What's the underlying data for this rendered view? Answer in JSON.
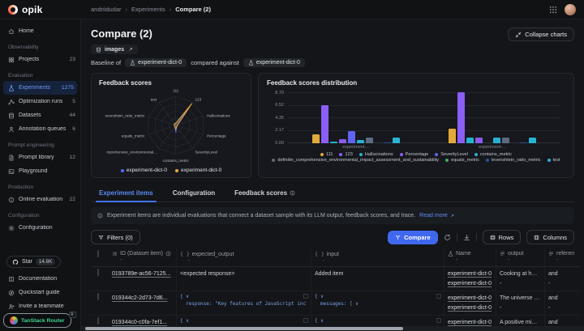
{
  "topbar": {
    "logo_text": "opik",
    "breadcrumb": [
      "andriidudar",
      "Experiments",
      "Compare (2)"
    ],
    "breadcrumb_separator": "›"
  },
  "sidebar": {
    "groups": [
      {
        "label": null,
        "items": [
          {
            "label": "Home",
            "icon": "home"
          }
        ]
      },
      {
        "label": "Observability",
        "items": [
          {
            "label": "Projects",
            "icon": "grid",
            "count": "23"
          }
        ]
      },
      {
        "label": "Evaluation",
        "items": [
          {
            "label": "Experiments",
            "icon": "flask",
            "count": "1275",
            "active": true
          },
          {
            "label": "Optimization runs",
            "icon": "optimization",
            "count": "5"
          },
          {
            "label": "Datasets",
            "icon": "database",
            "count": "44"
          },
          {
            "label": "Annotation queues",
            "icon": "annotation",
            "count": "6"
          }
        ]
      },
      {
        "label": "Prompt engineering",
        "items": [
          {
            "label": "Prompt library",
            "icon": "document",
            "count": "12"
          },
          {
            "label": "Playground",
            "icon": "playground"
          }
        ]
      },
      {
        "label": "Production",
        "items": [
          {
            "label": "Online evaluation",
            "icon": "online",
            "count": "22"
          }
        ]
      },
      {
        "label": "Configuration",
        "items": [
          {
            "label": "Configuration",
            "icon": "gear"
          }
        ]
      }
    ],
    "footer": {
      "star_label": "Star",
      "star_count": "14.8K",
      "items": [
        {
          "label": "Documentation",
          "icon": "book"
        },
        {
          "label": "Quickstart guide",
          "icon": "compass"
        },
        {
          "label": "Invite a teammate",
          "icon": "user-plus"
        }
      ]
    }
  },
  "devtools": {
    "label": "TanStack Router",
    "shortcut": "k"
  },
  "header": {
    "title": "Compare (2)",
    "dataset_badge": "images",
    "baseline_prefix": "Baseline of",
    "baseline_experiment": "experiment-dict-0",
    "compared_label": "compared against",
    "compared_experiment": "experiment-dict-0",
    "collapse_button": "Collapse charts"
  },
  "chart_data": [
    {
      "type": "radar",
      "title": "Feedback scores",
      "axes": [
        "111",
        "123",
        "Hallucinations",
        "Percentage",
        "SeverityLevel",
        "contains_metric",
        "mprehensive_environmental...",
        "equals_metric",
        "evenshtein_ratio_metric",
        "test"
      ],
      "rings": 4,
      "max": 1,
      "series": [
        {
          "name": "experiment-dict-0",
          "color": "#4e6ef2",
          "values": [
            0.07,
            0.78,
            0.06,
            0.05,
            0.05,
            0.24,
            0.05,
            0.05,
            0.06,
            0.07
          ]
        },
        {
          "name": "experiment-dict-0",
          "color": "#e8a93c",
          "values": [
            0.08,
            0.95,
            0.07,
            0.05,
            0.05,
            0.13,
            0.05,
            0.05,
            0.06,
            0.08
          ]
        }
      ],
      "legend_position": "bottom"
    },
    {
      "type": "bar",
      "title": "Feedback scores distribution",
      "categories": [
        "experiment-...",
        "experiment-..."
      ],
      "ylim": [
        0,
        8.7
      ],
      "yticks": [
        "8.70",
        "6.52",
        "4.35",
        "2.17",
        "0.00"
      ],
      "grid": true,
      "legend_position": "bottom",
      "series": [
        {
          "name": "111",
          "color": "#e3a93a",
          "values": [
            1.5,
            2.5
          ]
        },
        {
          "name": "123",
          "color": "#8b5ef6",
          "values": [
            6.55,
            8.9
          ]
        },
        {
          "name": "Hallucinations",
          "color": "#25b3cb",
          "values": [
            0.3,
            1.0
          ]
        },
        {
          "name": "Percentage",
          "color": "#8a5bee",
          "values": [
            0.65,
            1.0
          ]
        },
        {
          "name": "SeverityLevel",
          "color": "#5f64ef",
          "values": [
            2.05,
            0
          ]
        },
        {
          "name": "contains_metric",
          "color": "#27b0d2",
          "values": [
            0.5,
            1.0
          ]
        },
        {
          "name": "definitin_comprehensive_environmental_impact_assessment_and_sustainability",
          "color": "#5d6b80",
          "values": [
            0.95,
            1.0
          ]
        },
        {
          "name": "equals_metric",
          "color": "#3fae63",
          "values": [
            0,
            0
          ]
        },
        {
          "name": "levenshtein_ratio_metric",
          "color": "#2f4f9e",
          "values": [
            0.12,
            0.1
          ]
        },
        {
          "name": "test",
          "color": "#2ab2d4",
          "values": [
            0.95,
            1.0
          ]
        }
      ]
    }
  ],
  "tabs": [
    {
      "label": "Experiment items",
      "active": true,
      "info": false
    },
    {
      "label": "Configuration",
      "active": false,
      "info": false
    },
    {
      "label": "Feedback scores",
      "active": false,
      "info": true
    }
  ],
  "banner": {
    "text": "Experiment items are individual evaluations that connect a dataset sample with its LLM output, feedback scores, and trace.",
    "link": "Read more"
  },
  "toolbar": {
    "filters": "Filters (0)",
    "compare": "Compare",
    "rows": "Rows",
    "columns": "Columns"
  },
  "table": {
    "columns": [
      {
        "key": "id",
        "label": "ID (Dataset item)",
        "icon": "list",
        "info": true,
        "sub": "-"
      },
      {
        "key": "expected",
        "label": "expected_output",
        "icon": "braces",
        "info": false,
        "sub": "-"
      },
      {
        "key": "input",
        "label": "input",
        "icon": "braces",
        "info": false,
        "sub": "-"
      },
      {
        "key": "name",
        "label": "Name",
        "icon": "flask",
        "info": false,
        "sub": "-"
      },
      {
        "key": "output",
        "label": "output",
        "icon": "text",
        "info": false,
        "sub": "-"
      },
      {
        "key": "reference",
        "label": "reference",
        "icon": "text",
        "info": false,
        "sub": "-"
      }
    ],
    "rows": [
      {
        "id": "0193789e-ac56-7125...",
        "expected": {
          "kind": "plain",
          "lines": [
            "<expected response>"
          ]
        },
        "input": {
          "kind": "plain",
          "lines": [
            "Added item"
          ]
        },
        "names": [
          "experiment-dict-0",
          "experiment-dict-0"
        ],
        "output": [
          "Cooking at home...",
          "-"
        ],
        "reference": [
          "and",
          "-"
        ]
      },
      {
        "id": "019344c2-2d73-7d6...",
        "expected": {
          "kind": "code",
          "lines": [
            "{ ∨",
            "response: \"Key features of JavaScript include:"
          ]
        },
        "input": {
          "kind": "code",
          "lines": [
            "{ ∨",
            "messages: [ ∨"
          ]
        },
        "names": [
          "experiment-dict-0",
          "experiment-dict-0"
        ],
        "output": [
          "The universe is v...",
          "-"
        ],
        "reference": [
          "and",
          "-"
        ]
      },
      {
        "id": "019344c0-c0fa-7ef1...",
        "expected": {
          "kind": "code",
          "lines": [
            "{ ∨"
          ]
        },
        "input": {
          "kind": "code",
          "lines": [
            "{ ∨"
          ]
        },
        "names": [
          "experiment-dict-0"
        ],
        "output": [
          "A positive minds..."
        ],
        "reference": [
          "and"
        ]
      }
    ]
  }
}
